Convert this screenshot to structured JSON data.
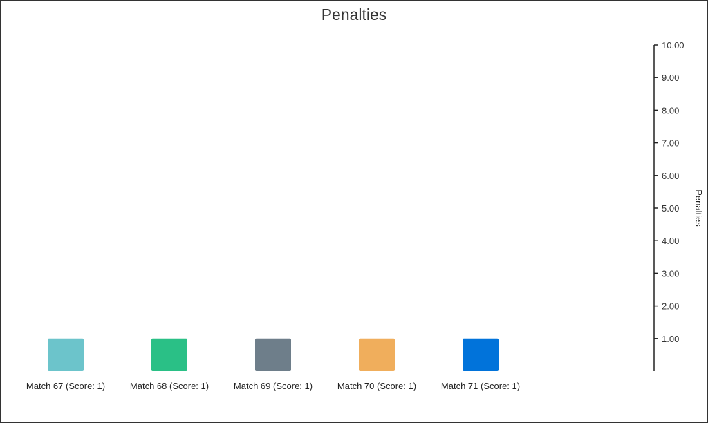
{
  "chart_data": {
    "type": "bar",
    "title": "Penalties",
    "ylabel": "Penalties",
    "xlabel": "",
    "ylim": [
      0,
      10
    ],
    "y_ticks": [
      "1.00",
      "2.00",
      "3.00",
      "4.00",
      "5.00",
      "6.00",
      "7.00",
      "8.00",
      "9.00",
      "10.00"
    ],
    "y_axis_position": "right",
    "grid": false,
    "categories": [
      "Match 67 (Score: 1)",
      "Match 68 (Score: 1)",
      "Match 69 (Score: 1)",
      "Match 70 (Score: 1)",
      "Match 71 (Score: 1)"
    ],
    "values": [
      1,
      1,
      1,
      1,
      1
    ],
    "colors": [
      "#6cc4cb",
      "#2ac086",
      "#6e7e8a",
      "#f0ae5c",
      "#0173da"
    ]
  }
}
